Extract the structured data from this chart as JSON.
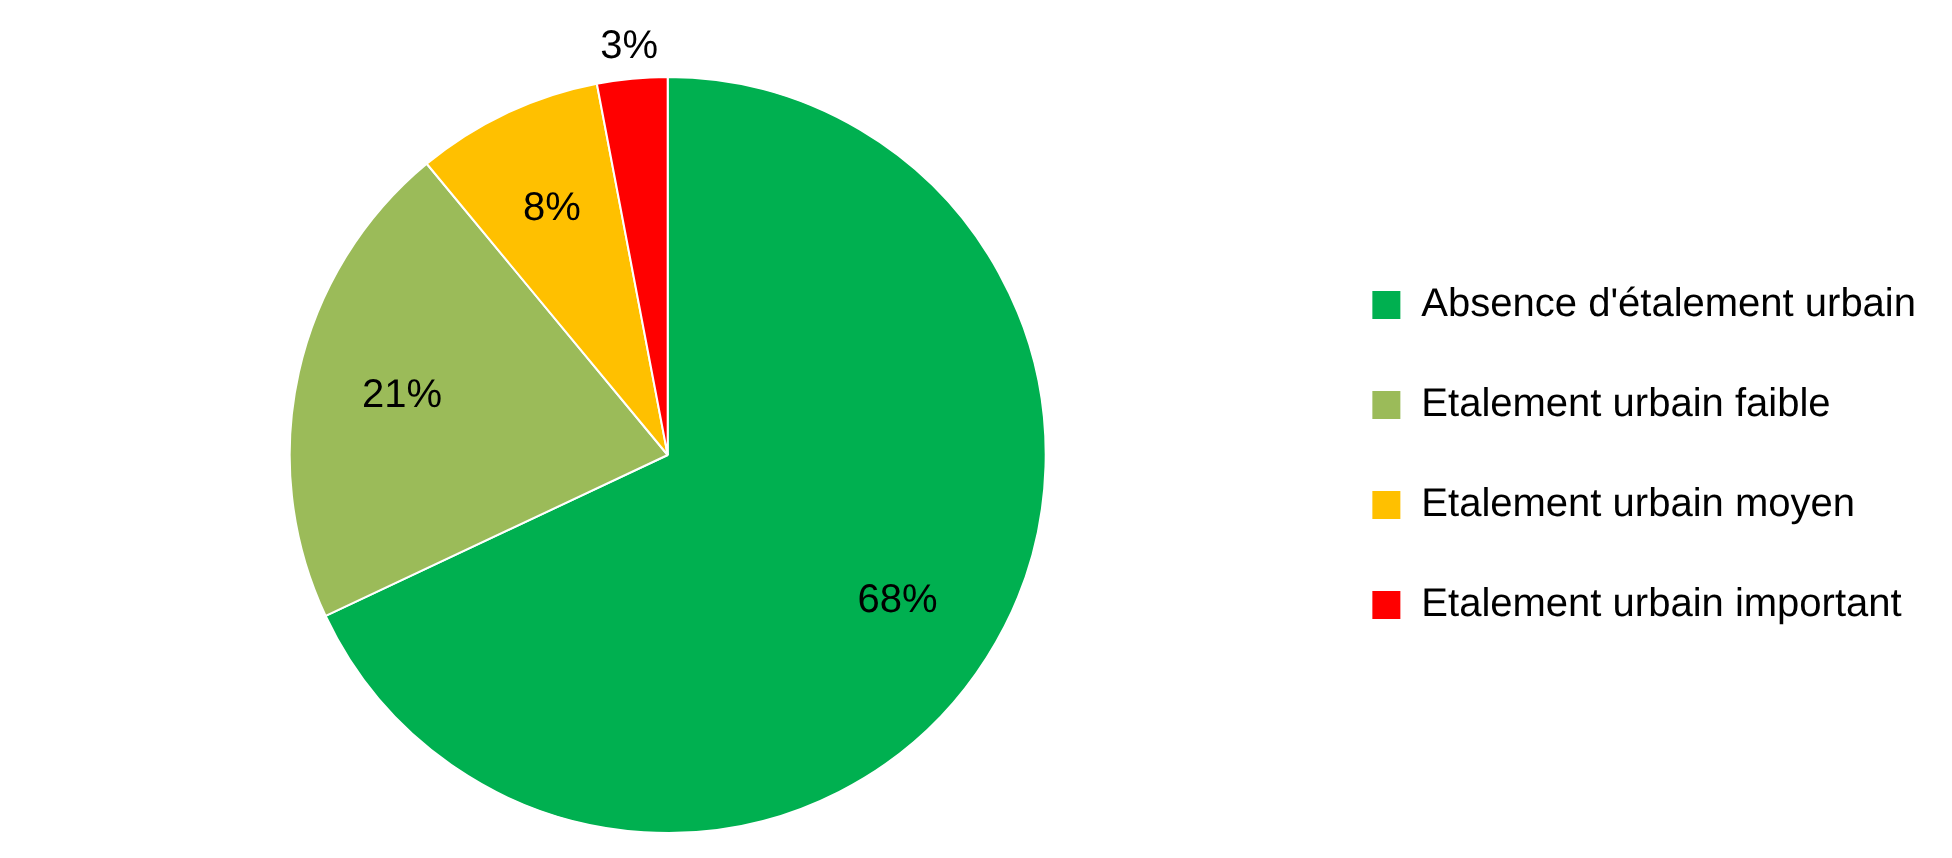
{
  "chart_data": {
    "type": "pie",
    "categories": [
      "Absence d'étalement urbain",
      "Etalement urbain faible",
      "Etalement urbain moyen",
      "Etalement urbain important"
    ],
    "values": [
      68,
      21,
      8,
      3
    ],
    "colors": [
      "#00b050",
      "#9bbb59",
      "#ffc000",
      "#ff0000"
    ],
    "value_labels": [
      "68%",
      "21%",
      "8%",
      "3%"
    ],
    "legend": "right"
  }
}
